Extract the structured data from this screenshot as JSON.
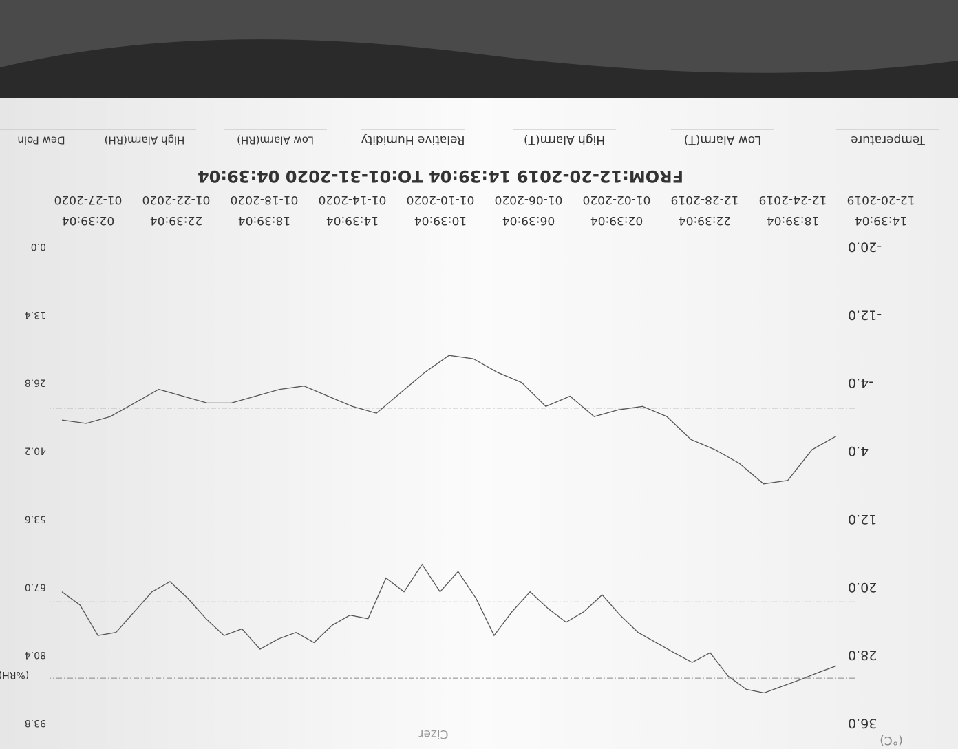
{
  "chart_data": {
    "type": "line",
    "title": "FROM:12-20-2019 14:39:04   TO:01-31-2020 04:39:04",
    "watermark": "Cizer",
    "y_label": "(°C)",
    "y2_label": "(%RH)",
    "xticks": [
      {
        "date": "12-20-2019",
        "time": "14:39:04"
      },
      {
        "date": "12-24-2019",
        "time": "18:39:04"
      },
      {
        "date": "12-28-2019",
        "time": "22:39:04"
      },
      {
        "date": "01-02-2020",
        "time": "02:39:04"
      },
      {
        "date": "01-06-2020",
        "time": "06:39:04"
      },
      {
        "date": "01-10-2020",
        "time": "10:39:04"
      },
      {
        "date": "01-14-2020",
        "time": "14:39:04"
      },
      {
        "date": "01-18-2020",
        "time": "18:39:04"
      },
      {
        "date": "01-22-2020",
        "time": "22:39:04"
      },
      {
        "date": "01-27-2020",
        "time": "02:39:04"
      }
    ],
    "ylim": [
      -20,
      36
    ],
    "yticks": [
      {
        "value": -20,
        "label": "-20.0"
      },
      {
        "value": -12,
        "label": "-12.0"
      },
      {
        "value": -4,
        "label": "-4.0"
      },
      {
        "value": 4,
        "label": "4.0"
      },
      {
        "value": 12,
        "label": "12.0"
      },
      {
        "value": 20,
        "label": "20.0"
      },
      {
        "value": 28,
        "label": "28.0"
      },
      {
        "value": 36,
        "label": "36.0"
      }
    ],
    "y2lim": [
      0,
      93.8
    ],
    "y2ticks": [
      {
        "value": 0,
        "label": "0.0"
      },
      13.4,
      26.8,
      40.2,
      53.6,
      {
        "value": 67,
        "label": "67.0"
      },
      80.4,
      93.8
    ],
    "series": [
      {
        "name": "Temperature",
        "color": "#555555",
        "values": [
          2.3,
          3.9,
          7.5,
          7.9,
          5.5,
          3.9,
          2.7,
          0,
          -1.2,
          -0.8,
          0,
          -2.4,
          -1.2,
          -4,
          -5.2,
          -6.8,
          -7.2,
          -5.2,
          -2.8,
          -0.4,
          -1.2,
          -2.4,
          -3.6,
          -3.2,
          -2.4,
          -1.6,
          -1.6,
          -2.4,
          -3.2,
          -1.6,
          0,
          0.8,
          0.4
        ]
      },
      {
        "name": "Low Alarm(T)",
        "color": "#888888",
        "value": -1.0
      },
      {
        "name": "High Alarm(T)",
        "color": "#888888"
      },
      {
        "name": "Relative Humidity",
        "color": "#555555",
        "axis": "y2",
        "values": [
          82.6,
          83.9,
          85.3,
          86.6,
          87.9,
          87.2,
          84.6,
          80,
          81.9,
          80,
          78,
          76,
          72.6,
          68.6,
          71.9,
          74,
          71.3,
          68,
          71.9,
          76.6,
          69.3,
          64,
          68,
          62.6,
          68,
          65.3,
          73.3,
          72.6,
          74.6,
          78,
          76,
          77.3,
          79.3,
          75.3,
          76.6,
          73.3,
          69.3,
          66,
          68,
          72,
          76,
          76.6,
          70.6,
          68
        ]
      },
      {
        "name": "Low Alarm(RH)",
        "color": "#888888",
        "axis": "y2",
        "value": 70.0
      },
      {
        "name": "High Alarm(RH)",
        "color": "#888888",
        "axis": "y2",
        "value": 85.0
      },
      {
        "name": "Dew Poin",
        "color": "#888888"
      }
    ]
  }
}
